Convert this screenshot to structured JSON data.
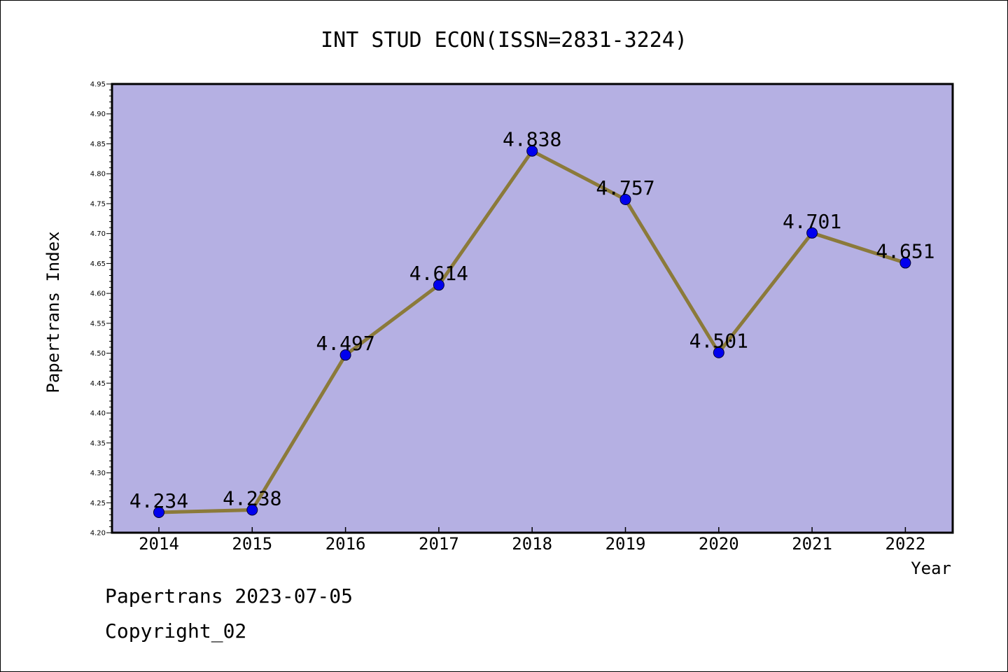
{
  "chart_data": {
    "type": "line",
    "title": "INT STUD ECON(ISSN=2831-3224)",
    "xlabel": "Year",
    "ylabel": "Papertrans Index",
    "categories": [
      "2014",
      "2015",
      "2016",
      "2017",
      "2018",
      "2019",
      "2020",
      "2021",
      "2022"
    ],
    "series": [
      {
        "values": [
          4.234,
          4.238,
          4.497,
          4.614,
          4.838,
          4.757,
          4.501,
          4.701,
          4.651
        ],
        "labels": [
          "4.234",
          "4.238",
          "4.497",
          "4.614",
          "4.838",
          "4.757",
          "4.501",
          "4.701",
          "4.651"
        ]
      }
    ],
    "ylim": [
      4.2,
      4.95
    ],
    "yticks": [
      "4.20",
      "4.25",
      "4.30",
      "4.35",
      "4.40",
      "4.45",
      "4.50",
      "4.55",
      "4.60",
      "4.65",
      "4.70",
      "4.75",
      "4.80",
      "4.85",
      "4.90",
      "4.95"
    ],
    "colors": {
      "plot_background": "#b5b0e3",
      "line": "#8b7a3a",
      "marker": "#0000ee"
    },
    "grid": false,
    "legend": "none"
  },
  "footer": {
    "line1": "Papertrans 2023-07-05",
    "line2": "Copyright_02"
  }
}
